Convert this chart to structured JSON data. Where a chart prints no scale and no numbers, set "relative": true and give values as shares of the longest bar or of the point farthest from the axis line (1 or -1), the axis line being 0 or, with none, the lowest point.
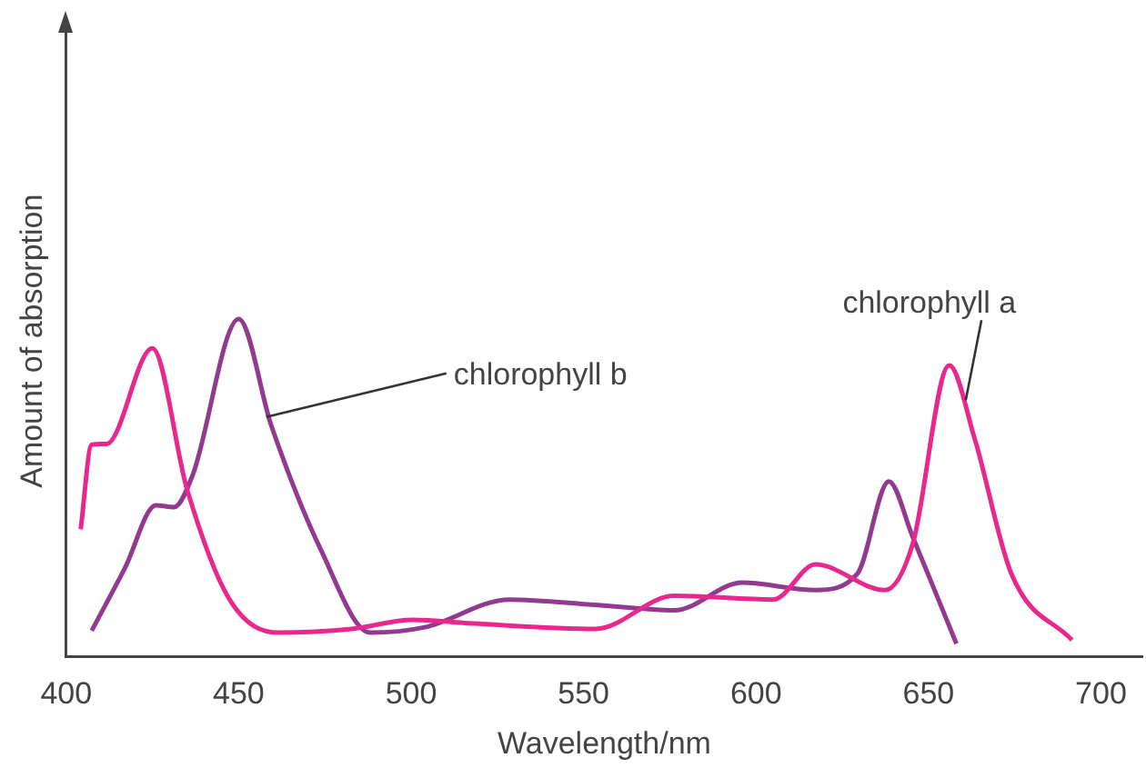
{
  "chart_data": {
    "type": "line",
    "relative": true,
    "xlabel": "Wavelength/nm",
    "ylabel": "Amount of absorption",
    "xlim": [
      400,
      712
    ],
    "xticks": [
      400,
      450,
      500,
      550,
      600,
      650,
      700
    ],
    "grid": false,
    "legend": false,
    "marker": "none",
    "line_style": "solid",
    "series": [
      {
        "color": "#e8288f",
        "x": [
          404.2,
          407.4,
          411.7,
          425,
          435,
          447.3,
          461.6,
          482.8,
          500.4,
          518,
          553.5,
          576.3,
          605,
          617.2,
          637.4,
          645.4,
          656,
          663.4,
          674,
          691.6
        ],
        "values": [
          0.377,
          0.628,
          0.63,
          0.913,
          0.497,
          0.17,
          0.071,
          0.082,
          0.109,
          0.098,
          0.082,
          0.18,
          0.169,
          0.273,
          0.197,
          0.333,
          0.863,
          0.645,
          0.246,
          0.049
        ]
      },
      {
        "color": "#923a8f",
        "x": [
          407.4,
          417,
          426,
          431.3,
          436.6,
          450,
          459.5,
          473.8,
          488.2,
          504,
          528.5,
          553.5,
          576.3,
          596,
          617.2,
          629.4,
          638.5,
          645.4,
          658.1
        ],
        "values": [
          0.077,
          0.262,
          0.448,
          0.443,
          0.536,
          1.0,
          0.683,
          0.317,
          0.071,
          0.087,
          0.169,
          0.153,
          0.137,
          0.219,
          0.197,
          0.246,
          0.519,
          0.355,
          0.038
        ]
      }
    ],
    "annotations": [
      {
        "text": "chlorophyll b",
        "x": 458,
        "y": 0.71
      },
      {
        "text": "chlorophyll a",
        "x": 660.8,
        "y": 0.76
      }
    ]
  }
}
